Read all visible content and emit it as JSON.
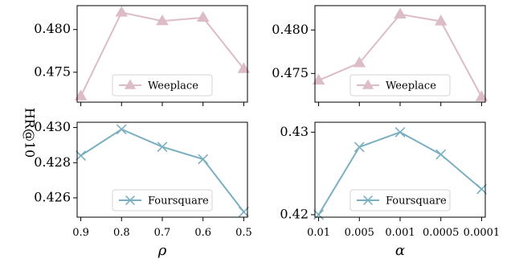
{
  "ylabel": "HR@10",
  "chart_data": [
    {
      "type": "line",
      "panel": "top-left",
      "x": [
        "0.9",
        "0.8",
        "0.7",
        "0.6",
        "0.5"
      ],
      "xlabel": "",
      "series": [
        {
          "name": "Weeplace",
          "values": [
            0.4722,
            0.482,
            0.481,
            0.4814,
            0.4754
          ]
        }
      ],
      "yticks": [
        "0.475",
        "0.480"
      ],
      "ytick_values": [
        0.475,
        0.48
      ],
      "ylim": [
        0.4715,
        0.4828
      ],
      "marker": "triangle",
      "color": "#dcbcc6",
      "legend_position": "bottom-right",
      "show_xticklabels": false
    },
    {
      "type": "line",
      "panel": "top-right",
      "x": [
        "0.01",
        "0.005",
        "0.001",
        "0.0005",
        "0.0001"
      ],
      "xlabel": "",
      "series": [
        {
          "name": "Weeplace",
          "values": [
            0.4742,
            0.4762,
            0.4818,
            0.481,
            0.4723
          ]
        }
      ],
      "yticks": [
        "0.475",
        "0.480"
      ],
      "ytick_values": [
        0.475,
        0.48
      ],
      "ylim": [
        0.4717,
        0.4828
      ],
      "marker": "triangle",
      "color": "#dcbcc6",
      "legend_position": "bottom-right",
      "show_xticklabels": false
    },
    {
      "type": "line",
      "panel": "bottom-left",
      "x": [
        "0.9",
        "0.8",
        "0.7",
        "0.6",
        "0.5"
      ],
      "xlabel": "ρ",
      "series": [
        {
          "name": "Foursquare",
          "values": [
            0.4284,
            0.4299,
            0.4289,
            0.4282,
            0.4252
          ]
        }
      ],
      "yticks": [
        "0.426",
        "0.428",
        "0.430"
      ],
      "ytick_values": [
        0.426,
        0.428,
        0.43
      ],
      "ylim": [
        0.4249,
        0.4303
      ],
      "marker": "x",
      "color": "#7aafc1",
      "legend_position": "bottom-right",
      "show_xticklabels": true
    },
    {
      "type": "line",
      "panel": "bottom-right",
      "x": [
        "0.01",
        "0.005",
        "0.001",
        "0.0005",
        "0.0001"
      ],
      "xlabel": "α",
      "series": [
        {
          "name": "Foursquare",
          "values": [
            0.42,
            0.4282,
            0.43,
            0.4273,
            0.4231
          ]
        }
      ],
      "yticks": [
        "0.42",
        "0.43"
      ],
      "ytick_values": [
        0.42,
        0.43
      ],
      "ylim": [
        0.4197,
        0.4312
      ],
      "marker": "x",
      "color": "#7aafc1",
      "legend_position": "bottom-right",
      "show_xticklabels": true
    }
  ]
}
